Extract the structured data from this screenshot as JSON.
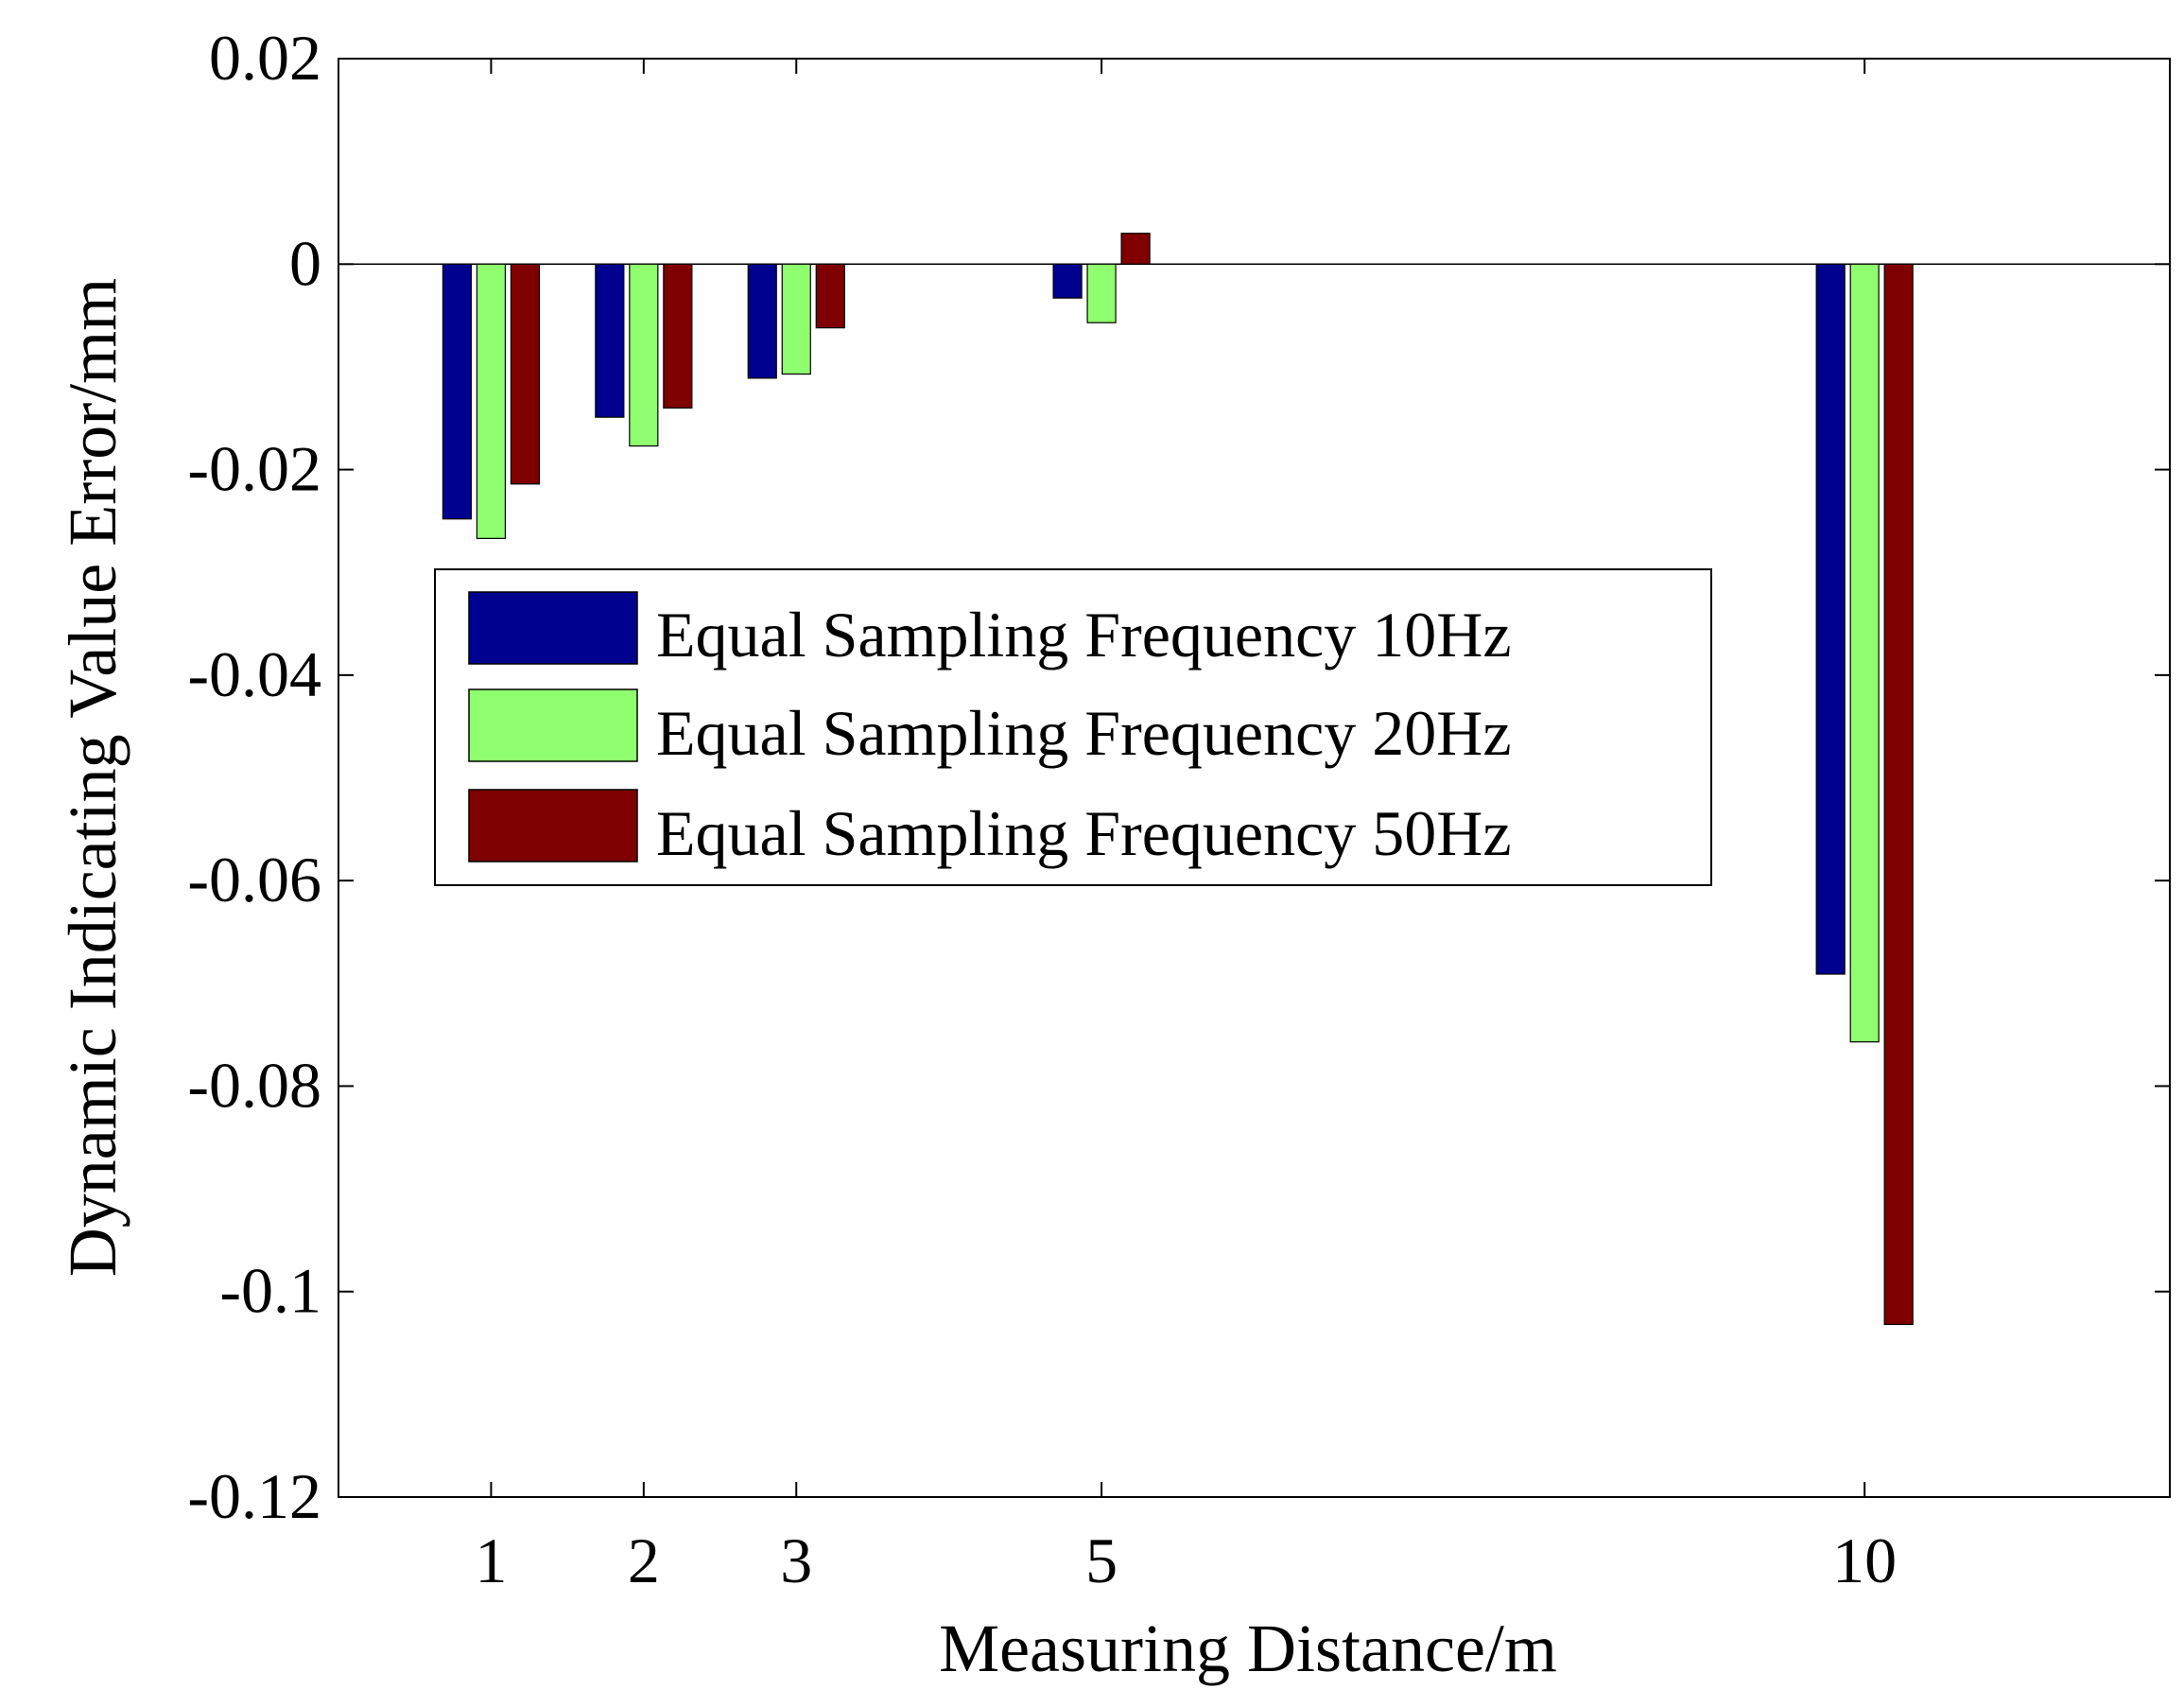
{
  "chart_data": {
    "type": "bar",
    "title": "",
    "xlabel": "Measuring Distance/m",
    "ylabel": "Dynamic Indicating Value  Error/mm",
    "x": [
      1,
      2,
      3,
      5,
      10
    ],
    "x_tick_labels": [
      "1",
      "2",
      "3",
      "5",
      "10"
    ],
    "xlim": [
      0,
      12
    ],
    "ylim": [
      -0.12,
      0.02
    ],
    "y_ticks": [
      0.02,
      0,
      -0.02,
      -0.04,
      -0.06,
      -0.08,
      -0.1,
      -0.12
    ],
    "y_tick_labels": [
      "0.02",
      "0",
      "-0.02",
      "-0.04",
      "-0.06",
      "-0.08",
      "-0.1",
      "-0.12"
    ],
    "grid": false,
    "legend_position": "center-left",
    "series": [
      {
        "name": "Equal Sampling Frequency 10Hz",
        "color": "#00008f",
        "values": [
          -0.0248,
          -0.0149,
          -0.0111,
          -0.0033,
          -0.0691
        ]
      },
      {
        "name": "Equal Sampling Frequency 20Hz",
        "color": "#8fff6f",
        "values": [
          -0.0267,
          -0.0177,
          -0.0107,
          -0.0057,
          -0.0757
        ]
      },
      {
        "name": "Equal Sampling Frequency 50Hz",
        "color": "#7f0000",
        "values": [
          -0.0214,
          -0.014,
          -0.0062,
          0.003,
          -0.1032
        ]
      }
    ]
  }
}
